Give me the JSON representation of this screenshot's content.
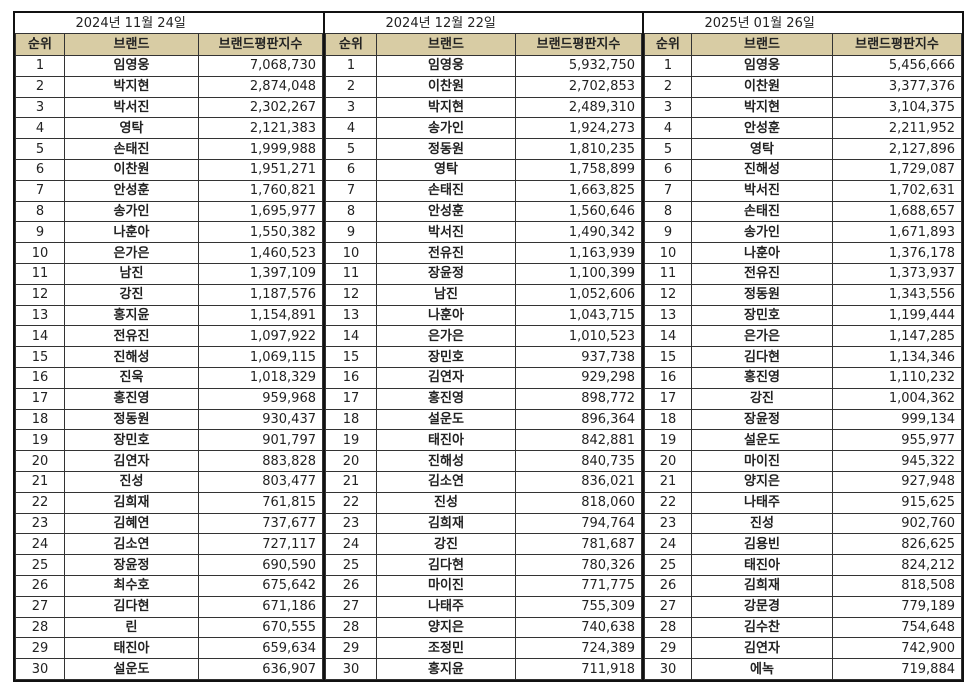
{
  "headers": {
    "rank": "순위",
    "brand": "브랜드",
    "score": "브랜드평판지수"
  },
  "accent_header_bg": "#d8cca4",
  "sections": [
    {
      "date": "2024년 11월 24일",
      "rows": [
        [
          "1",
          "임영웅",
          "7,068,730"
        ],
        [
          "2",
          "박지현",
          "2,874,048"
        ],
        [
          "3",
          "박서진",
          "2,302,267"
        ],
        [
          "4",
          "영탁",
          "2,121,383"
        ],
        [
          "5",
          "손태진",
          "1,999,988"
        ],
        [
          "6",
          "이찬원",
          "1,951,271"
        ],
        [
          "7",
          "안성훈",
          "1,760,821"
        ],
        [
          "8",
          "송가인",
          "1,695,977"
        ],
        [
          "9",
          "나훈아",
          "1,550,382"
        ],
        [
          "10",
          "은가은",
          "1,460,523"
        ],
        [
          "11",
          "남진",
          "1,397,109"
        ],
        [
          "12",
          "강진",
          "1,187,576"
        ],
        [
          "13",
          "홍지윤",
          "1,154,891"
        ],
        [
          "14",
          "전유진",
          "1,097,922"
        ],
        [
          "15",
          "진해성",
          "1,069,115"
        ],
        [
          "16",
          "진욱",
          "1,018,329"
        ],
        [
          "17",
          "홍진영",
          "959,968"
        ],
        [
          "18",
          "정동원",
          "930,437"
        ],
        [
          "19",
          "장민호",
          "901,797"
        ],
        [
          "20",
          "김연자",
          "883,828"
        ],
        [
          "21",
          "진성",
          "803,477"
        ],
        [
          "22",
          "김희재",
          "761,815"
        ],
        [
          "23",
          "김혜연",
          "737,677"
        ],
        [
          "24",
          "김소연",
          "727,117"
        ],
        [
          "25",
          "장윤정",
          "690,590"
        ],
        [
          "26",
          "최수호",
          "675,642"
        ],
        [
          "27",
          "김다현",
          "671,186"
        ],
        [
          "28",
          "린",
          "670,555"
        ],
        [
          "29",
          "태진아",
          "659,634"
        ],
        [
          "30",
          "설운도",
          "636,907"
        ]
      ]
    },
    {
      "date": "2024년 12월 22일",
      "rows": [
        [
          "1",
          "임영웅",
          "5,932,750"
        ],
        [
          "2",
          "이찬원",
          "2,702,853"
        ],
        [
          "3",
          "박지현",
          "2,489,310"
        ],
        [
          "4",
          "송가인",
          "1,924,273"
        ],
        [
          "5",
          "정동원",
          "1,810,235"
        ],
        [
          "6",
          "영탁",
          "1,758,899"
        ],
        [
          "7",
          "손태진",
          "1,663,825"
        ],
        [
          "8",
          "안성훈",
          "1,560,646"
        ],
        [
          "9",
          "박서진",
          "1,490,342"
        ],
        [
          "10",
          "전유진",
          "1,163,939"
        ],
        [
          "11",
          "장윤정",
          "1,100,399"
        ],
        [
          "12",
          "남진",
          "1,052,606"
        ],
        [
          "13",
          "나훈아",
          "1,043,715"
        ],
        [
          "14",
          "은가은",
          "1,010,523"
        ],
        [
          "15",
          "장민호",
          "937,738"
        ],
        [
          "16",
          "김연자",
          "929,298"
        ],
        [
          "17",
          "홍진영",
          "898,772"
        ],
        [
          "18",
          "설운도",
          "896,364"
        ],
        [
          "19",
          "태진아",
          "842,881"
        ],
        [
          "20",
          "진해성",
          "840,735"
        ],
        [
          "21",
          "김소연",
          "836,021"
        ],
        [
          "22",
          "진성",
          "818,060"
        ],
        [
          "23",
          "김희재",
          "794,764"
        ],
        [
          "24",
          "강진",
          "781,687"
        ],
        [
          "25",
          "김다현",
          "780,326"
        ],
        [
          "26",
          "마이진",
          "771,775"
        ],
        [
          "27",
          "나태주",
          "755,309"
        ],
        [
          "28",
          "양지은",
          "740,638"
        ],
        [
          "29",
          "조정민",
          "724,389"
        ],
        [
          "30",
          "홍지윤",
          "711,918"
        ]
      ]
    },
    {
      "date": "2025년 01월 26일",
      "rows": [
        [
          "1",
          "임영웅",
          "5,456,666"
        ],
        [
          "2",
          "이찬원",
          "3,377,376"
        ],
        [
          "3",
          "박지현",
          "3,104,375"
        ],
        [
          "4",
          "안성훈",
          "2,211,952"
        ],
        [
          "5",
          "영탁",
          "2,127,896"
        ],
        [
          "6",
          "진해성",
          "1,729,087"
        ],
        [
          "7",
          "박서진",
          "1,702,631"
        ],
        [
          "8",
          "손태진",
          "1,688,657"
        ],
        [
          "9",
          "송가인",
          "1,671,893"
        ],
        [
          "10",
          "나훈아",
          "1,376,178"
        ],
        [
          "11",
          "전유진",
          "1,373,937"
        ],
        [
          "12",
          "정동원",
          "1,343,556"
        ],
        [
          "13",
          "장민호",
          "1,199,444"
        ],
        [
          "14",
          "은가은",
          "1,147,285"
        ],
        [
          "15",
          "김다현",
          "1,134,346"
        ],
        [
          "16",
          "홍진영",
          "1,110,232"
        ],
        [
          "17",
          "강진",
          "1,004,362"
        ],
        [
          "18",
          "장윤정",
          "999,134"
        ],
        [
          "19",
          "설운도",
          "955,977"
        ],
        [
          "20",
          "마이진",
          "945,322"
        ],
        [
          "21",
          "양지은",
          "927,948"
        ],
        [
          "22",
          "나태주",
          "915,625"
        ],
        [
          "23",
          "진성",
          "902,760"
        ],
        [
          "24",
          "김용빈",
          "826,625"
        ],
        [
          "25",
          "태진아",
          "824,212"
        ],
        [
          "26",
          "김희재",
          "818,508"
        ],
        [
          "27",
          "강문경",
          "779,189"
        ],
        [
          "28",
          "김수찬",
          "754,648"
        ],
        [
          "29",
          "김연자",
          "742,900"
        ],
        [
          "30",
          "에녹",
          "719,884"
        ]
      ]
    }
  ]
}
